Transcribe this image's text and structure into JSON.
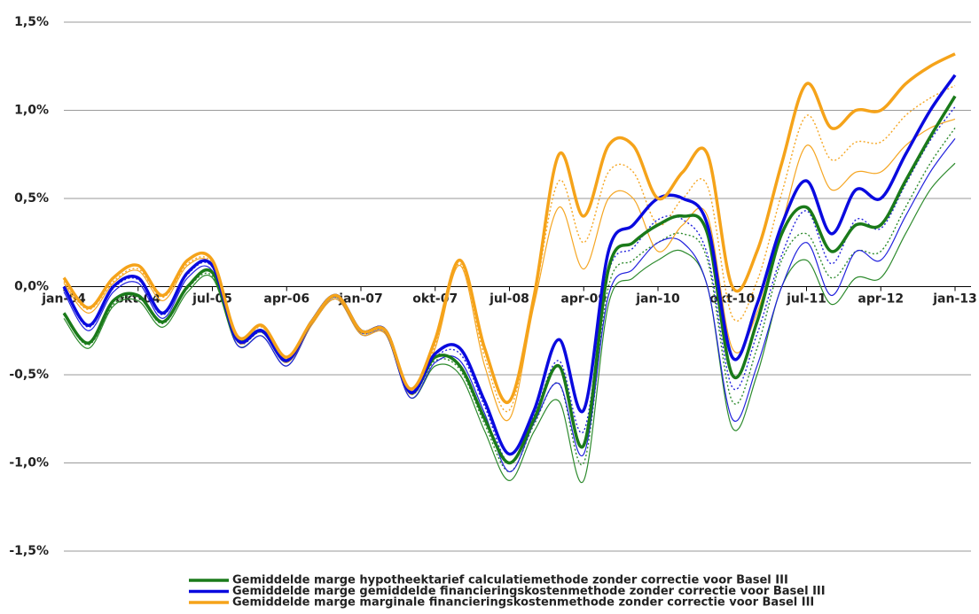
{
  "chart_data": {
    "type": "line",
    "categories": [
      "jan-04",
      null,
      null,
      "okt-04",
      null,
      null,
      "jul-05",
      null,
      null,
      "apr-06",
      null,
      null,
      "jan-07",
      null,
      null,
      "okt-07",
      null,
      null,
      "jul-08",
      null,
      null,
      "apr-09",
      null,
      null,
      "jan-10",
      null,
      null,
      "okt-10",
      null,
      null,
      "jul-11",
      null,
      null,
      "apr-12",
      null,
      null,
      "jan-13"
    ],
    "ylim": [
      -1.5,
      1.5
    ],
    "yticks": [
      {
        "value": -1.5,
        "label": "-1,5%"
      },
      {
        "value": -1.0,
        "label": "-1,0%"
      },
      {
        "value": -0.5,
        "label": "-0,5%"
      },
      {
        "value": 0,
        "label": "0,0%"
      },
      {
        "value": 0.5,
        "label": "0,5%"
      },
      {
        "value": 1.0,
        "label": "1,0%"
      },
      {
        "value": 1.5,
        "label": "1,5%"
      }
    ],
    "grid": true,
    "legend": "bottom",
    "series": [
      {
        "color": "#2e8b2e",
        "style": "thin",
        "values": [
          -0.18,
          -0.35,
          -0.11,
          -0.08,
          -0.23,
          -0.03,
          0.05,
          -0.33,
          -0.28,
          -0.45,
          -0.22,
          -0.07,
          -0.27,
          -0.27,
          -0.63,
          -0.45,
          -0.5,
          -0.82,
          -1.1,
          -0.82,
          -0.65,
          -1.1,
          -0.1,
          0.05,
          0.15,
          0.2,
          0.0,
          -0.8,
          -0.5,
          0.0,
          0.15,
          -0.1,
          0.05,
          0.05,
          0.3,
          0.55,
          0.7
        ]
      },
      {
        "color": "#2e8b2e",
        "style": "dotted",
        "values": [
          -0.16,
          -0.33,
          -0.1,
          -0.06,
          -0.21,
          -0.01,
          0.06,
          -0.31,
          -0.26,
          -0.43,
          -0.21,
          -0.06,
          -0.26,
          -0.26,
          -0.61,
          -0.42,
          -0.47,
          -0.78,
          -1.05,
          -0.78,
          -0.55,
          -1.0,
          0.0,
          0.15,
          0.25,
          0.3,
          0.15,
          -0.65,
          -0.35,
          0.15,
          0.3,
          0.05,
          0.2,
          0.2,
          0.45,
          0.7,
          0.9
        ]
      },
      {
        "color": "#2222dd",
        "style": "thin",
        "values": [
          -0.03,
          -0.25,
          -0.03,
          0.02,
          -0.18,
          0.05,
          0.09,
          -0.33,
          -0.28,
          -0.45,
          -0.22,
          -0.07,
          -0.27,
          -0.27,
          -0.63,
          -0.43,
          -0.42,
          -0.72,
          -1.05,
          -0.77,
          -0.55,
          -0.95,
          -0.05,
          0.1,
          0.25,
          0.25,
          0.0,
          -0.75,
          -0.45,
          0.0,
          0.25,
          -0.05,
          0.2,
          0.15,
          0.4,
          0.65,
          0.84
        ]
      },
      {
        "color": "#2222dd",
        "style": "dotted",
        "values": [
          -0.01,
          -0.23,
          -0.01,
          0.04,
          -0.16,
          0.07,
          0.11,
          -0.31,
          -0.26,
          -0.43,
          -0.21,
          -0.06,
          -0.26,
          -0.26,
          -0.61,
          -0.4,
          -0.38,
          -0.68,
          -1.0,
          -0.73,
          -0.42,
          -0.82,
          0.08,
          0.22,
          0.38,
          0.38,
          0.18,
          -0.57,
          -0.27,
          0.18,
          0.43,
          0.13,
          0.38,
          0.33,
          0.58,
          0.83,
          1.02
        ]
      },
      {
        "color": "#f5a623",
        "style": "thin",
        "values": [
          0.02,
          -0.15,
          0.02,
          0.09,
          -0.08,
          0.12,
          0.12,
          -0.31,
          -0.25,
          -0.43,
          -0.22,
          -0.07,
          -0.27,
          -0.27,
          -0.61,
          -0.35,
          0.12,
          -0.45,
          -0.75,
          -0.1,
          0.45,
          0.1,
          0.5,
          0.5,
          0.2,
          0.35,
          0.4,
          -0.35,
          -0.15,
          0.35,
          0.8,
          0.55,
          0.65,
          0.65,
          0.8,
          0.9,
          0.95
        ]
      },
      {
        "color": "#f5a623",
        "style": "dotted",
        "values": [
          0.03,
          -0.13,
          0.03,
          0.1,
          -0.06,
          0.13,
          0.13,
          -0.29,
          -0.23,
          -0.41,
          -0.21,
          -0.06,
          -0.26,
          -0.26,
          -0.59,
          -0.33,
          0.13,
          -0.4,
          -0.7,
          -0.07,
          0.6,
          0.25,
          0.65,
          0.65,
          0.35,
          0.5,
          0.57,
          -0.17,
          0.03,
          0.53,
          0.97,
          0.72,
          0.82,
          0.82,
          0.97,
          1.07,
          1.14
        ]
      },
      {
        "name": "Gemiddelde marge hypotheektarief calculatiemethode zonder correctie voor Basel III",
        "color": "#1a7a1a",
        "style": "thick",
        "values": [
          -0.15,
          -0.32,
          -0.08,
          -0.05,
          -0.2,
          0.0,
          0.08,
          -0.3,
          -0.25,
          -0.42,
          -0.2,
          -0.05,
          -0.25,
          -0.25,
          -0.6,
          -0.4,
          -0.45,
          -0.75,
          -1.0,
          -0.75,
          -0.45,
          -0.9,
          0.1,
          0.25,
          0.35,
          0.4,
          0.3,
          -0.5,
          -0.2,
          0.3,
          0.45,
          0.2,
          0.35,
          0.35,
          0.6,
          0.85,
          1.08
        ]
      },
      {
        "name": "Gemiddelde marge gemiddelde financieringskostenmethode zonder correctie voor Basel III",
        "color": "#0a0adf",
        "style": "thick",
        "values": [
          0.0,
          -0.22,
          0.0,
          0.05,
          -0.15,
          0.08,
          0.12,
          -0.3,
          -0.25,
          -0.42,
          -0.2,
          -0.05,
          -0.25,
          -0.25,
          -0.6,
          -0.38,
          -0.35,
          -0.65,
          -0.95,
          -0.7,
          -0.3,
          -0.7,
          0.2,
          0.35,
          0.5,
          0.5,
          0.35,
          -0.4,
          -0.1,
          0.35,
          0.6,
          0.3,
          0.55,
          0.5,
          0.75,
          1.0,
          1.2
        ]
      },
      {
        "name": "Gemiddelde marge marginale financieringskostenmethode zonder correctie voor Basel III",
        "color": "#f5a31a",
        "style": "thick",
        "values": [
          0.05,
          -0.12,
          0.05,
          0.12,
          -0.05,
          0.15,
          0.15,
          -0.28,
          -0.22,
          -0.4,
          -0.2,
          -0.05,
          -0.25,
          -0.25,
          -0.58,
          -0.3,
          0.15,
          -0.35,
          -0.65,
          -0.05,
          0.75,
          0.4,
          0.8,
          0.8,
          0.5,
          0.65,
          0.75,
          0.0,
          0.2,
          0.7,
          1.15,
          0.9,
          1.0,
          1.0,
          1.15,
          1.25,
          1.32
        ]
      }
    ]
  }
}
